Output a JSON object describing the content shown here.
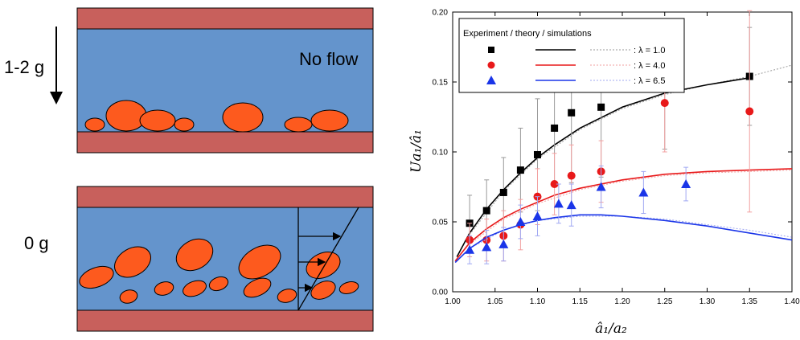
{
  "schematic": {
    "top_panel": {
      "gravity_label": "1-2 g",
      "flow_label": "No flow"
    },
    "bottom_panel": {
      "gravity_label": "0 g"
    },
    "colors": {
      "wall": "#c8605c",
      "fluid": "#6494cc",
      "bubble": "#fd5a1e",
      "outline": "#000000"
    }
  },
  "chart_data": {
    "type": "scatter",
    "title": "",
    "xlabel": "â₁/a₂",
    "ylabel": "Ua₁/â₁",
    "xlim": [
      1.0,
      1.4
    ],
    "ylim": [
      0.0,
      0.2
    ],
    "x_ticks": [
      "1.00",
      "1.05",
      "1.10",
      "1.15",
      "1.20",
      "1.25",
      "1.30",
      "1.35",
      "1.40"
    ],
    "y_ticks": [
      "0.00",
      "0.05",
      "0.10",
      "0.15",
      "0.20"
    ],
    "legend_header": "Experiment / theory  / simulations",
    "legend_placement": "top-left",
    "grid": false,
    "series": [
      {
        "name": ": λ = 1.0",
        "color": "#000000",
        "marker": "square",
        "x": [
          1.02,
          1.04,
          1.06,
          1.08,
          1.1,
          1.12,
          1.14,
          1.175,
          1.25,
          1.35
        ],
        "y": [
          0.049,
          0.058,
          0.071,
          0.087,
          0.098,
          0.117,
          0.128,
          0.132,
          0.147,
          0.154
        ],
        "err": [
          0.02,
          0.022,
          0.025,
          0.03,
          0.04,
          0.04,
          0.05,
          0.05,
          0.045,
          0.035
        ],
        "theory_x": [
          1.005,
          1.02,
          1.04,
          1.06,
          1.08,
          1.1,
          1.12,
          1.15,
          1.2,
          1.25,
          1.3,
          1.35
        ],
        "theory_y": [
          0.025,
          0.042,
          0.059,
          0.073,
          0.085,
          0.096,
          0.105,
          0.117,
          0.132,
          0.142,
          0.148,
          0.153
        ],
        "sim_x": [
          1.02,
          1.06,
          1.1,
          1.15,
          1.2,
          1.25,
          1.3,
          1.35,
          1.4
        ],
        "sim_y": [
          0.041,
          0.072,
          0.095,
          0.116,
          0.131,
          0.141,
          0.148,
          0.154,
          0.162
        ]
      },
      {
        "name": ": λ = 4.0",
        "color": "#e8191a",
        "marker": "circle",
        "x": [
          1.02,
          1.04,
          1.06,
          1.08,
          1.1,
          1.12,
          1.14,
          1.175,
          1.25,
          1.35
        ],
        "y": [
          0.037,
          0.037,
          0.04,
          0.048,
          0.068,
          0.077,
          0.083,
          0.086,
          0.135,
          0.129
        ],
        "err": [
          0.012,
          0.015,
          0.018,
          0.018,
          0.02,
          0.022,
          0.022,
          0.022,
          0.035,
          0.072
        ],
        "theory_x": [
          1.003,
          1.02,
          1.04,
          1.06,
          1.08,
          1.1,
          1.12,
          1.15,
          1.2,
          1.25,
          1.3,
          1.35,
          1.4
        ],
        "theory_y": [
          0.022,
          0.035,
          0.045,
          0.053,
          0.059,
          0.064,
          0.069,
          0.074,
          0.08,
          0.084,
          0.086,
          0.087,
          0.088
        ],
        "sim_x": [
          1.02,
          1.06,
          1.1,
          1.15,
          1.2,
          1.25,
          1.3,
          1.35,
          1.4
        ],
        "sim_y": [
          0.034,
          0.052,
          0.063,
          0.073,
          0.079,
          0.083,
          0.085,
          0.086,
          0.087
        ]
      },
      {
        "name": ": λ = 6.5",
        "color": "#1a35e8",
        "marker": "triangle",
        "x": [
          1.02,
          1.04,
          1.06,
          1.08,
          1.1,
          1.125,
          1.14,
          1.175,
          1.225,
          1.275
        ],
        "y": [
          0.03,
          0.032,
          0.034,
          0.05,
          0.054,
          0.063,
          0.062,
          0.075,
          0.071,
          0.077
        ],
        "err": [
          0.01,
          0.012,
          0.012,
          0.012,
          0.014,
          0.014,
          0.015,
          0.015,
          0.015,
          0.012
        ],
        "theory_x": [
          1.003,
          1.02,
          1.04,
          1.06,
          1.08,
          1.1,
          1.12,
          1.15,
          1.175,
          1.2,
          1.25,
          1.3,
          1.35,
          1.4
        ],
        "theory_y": [
          0.021,
          0.031,
          0.039,
          0.044,
          0.048,
          0.051,
          0.053,
          0.055,
          0.055,
          0.054,
          0.051,
          0.047,
          0.042,
          0.037
        ],
        "sim_x": [
          1.02,
          1.06,
          1.1,
          1.15,
          1.2,
          1.25,
          1.3,
          1.35,
          1.4
        ],
        "sim_y": [
          0.031,
          0.044,
          0.051,
          0.054,
          0.054,
          0.052,
          0.048,
          0.044,
          0.039
        ]
      }
    ]
  }
}
